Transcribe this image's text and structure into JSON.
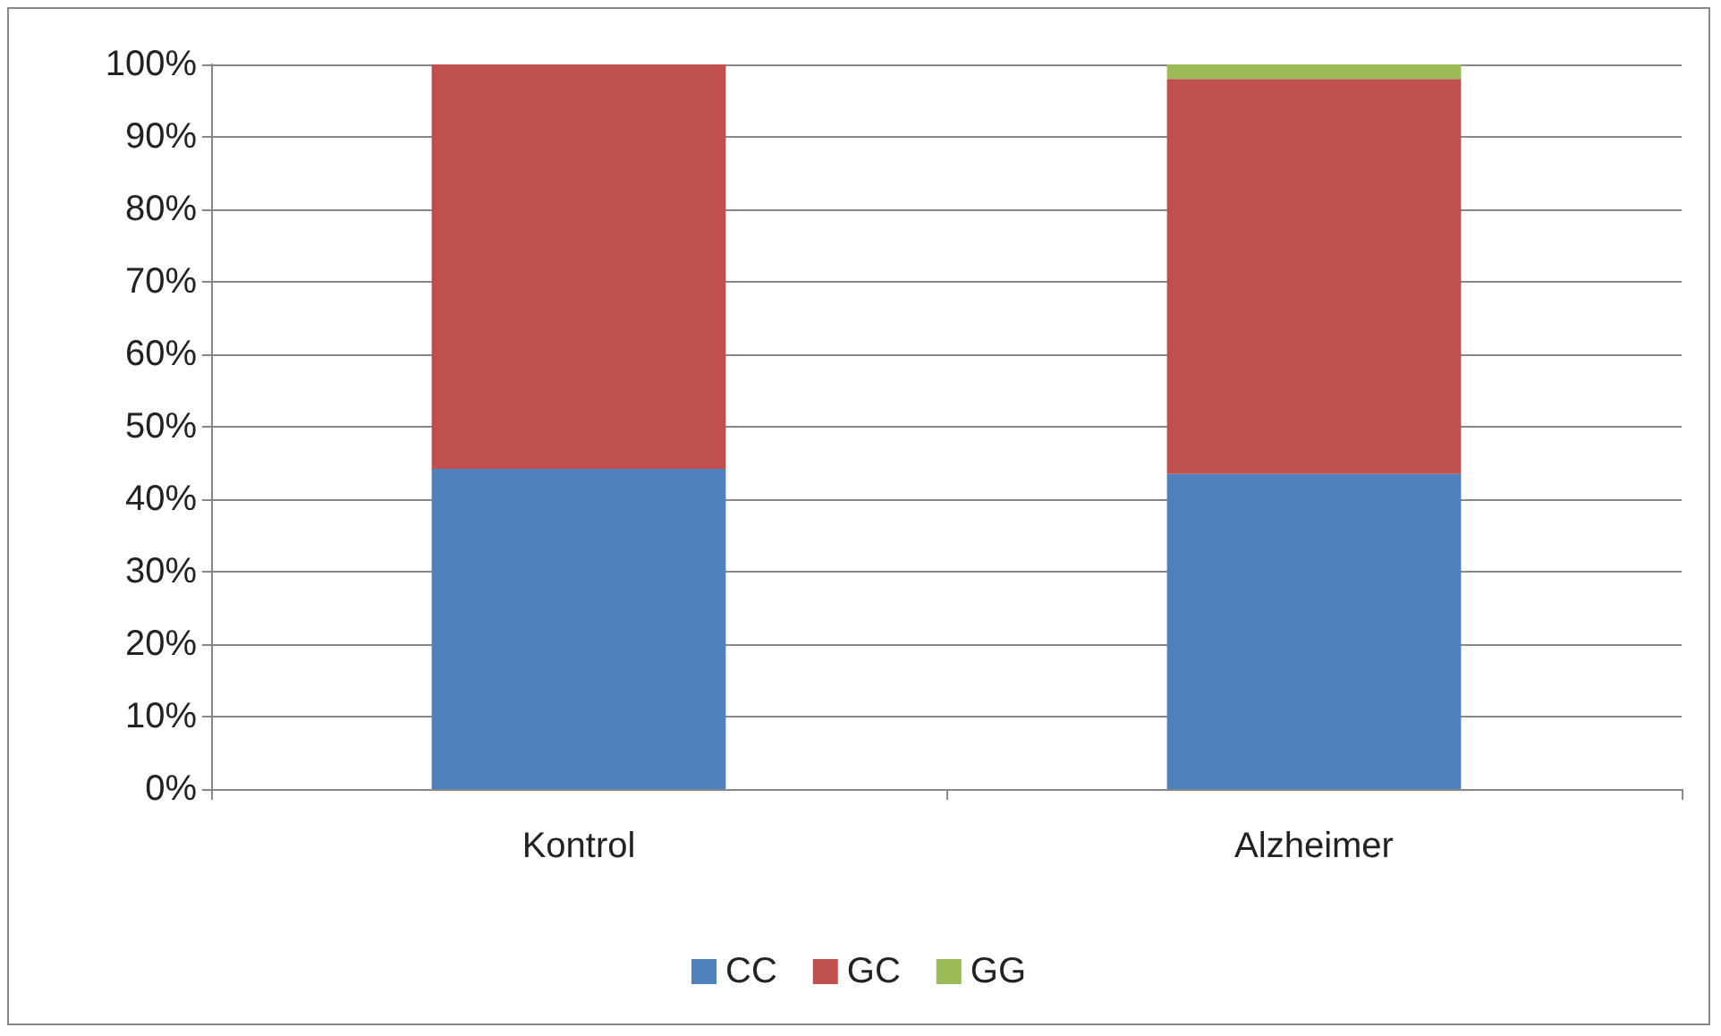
{
  "chart_data": {
    "type": "bar",
    "stacked": true,
    "categories": [
      "Kontrol",
      "Alzheimer"
    ],
    "series": [
      {
        "name": "CC",
        "color": "#4f81bd",
        "values": [
          44.2,
          43.5
        ]
      },
      {
        "name": "GC",
        "color": "#c0504d",
        "values": [
          55.8,
          54.5
        ]
      },
      {
        "name": "GG",
        "color": "#9bbb59",
        "values": [
          0,
          2
        ]
      }
    ],
    "ylim": [
      0,
      100
    ],
    "yticks": [
      {
        "value": 0,
        "label": "0%"
      },
      {
        "value": 10,
        "label": "10%"
      },
      {
        "value": 20,
        "label": "20%"
      },
      {
        "value": 30,
        "label": "30%"
      },
      {
        "value": 40,
        "label": "40%"
      },
      {
        "value": 50,
        "label": "50%"
      },
      {
        "value": 60,
        "label": "60%"
      },
      {
        "value": 70,
        "label": "70%"
      },
      {
        "value": 80,
        "label": "80%"
      },
      {
        "value": 90,
        "label": "90%"
      },
      {
        "value": 100,
        "label": "100%"
      }
    ],
    "grid": "y",
    "legend": "bottom"
  }
}
